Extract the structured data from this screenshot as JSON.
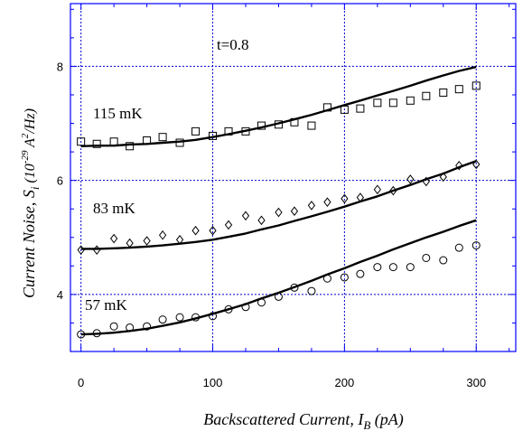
{
  "chart_data": {
    "type": "scatter",
    "title": "",
    "xlabel": "Backscattered Current, I_B (pA)",
    "ylabel": "Current Noise, S_i (10^-29 A^2/Hz)",
    "xlim": [
      -8,
      330
    ],
    "ylim": [
      3.0,
      9.1
    ],
    "x_ticks": [
      0,
      100,
      200,
      300
    ],
    "y_ticks": [
      4,
      6,
      8
    ],
    "grid": true,
    "annotation": "t=0.8",
    "series": [
      {
        "name": "115 mK",
        "marker": "square",
        "x": [
          0,
          12,
          25,
          37,
          50,
          62,
          75,
          87,
          100,
          112,
          125,
          137,
          150,
          162,
          175,
          187,
          200,
          212,
          225,
          237,
          250,
          262,
          275,
          287,
          300
        ],
        "y": [
          6.68,
          6.64,
          6.68,
          6.6,
          6.7,
          6.76,
          6.66,
          6.86,
          6.78,
          6.86,
          6.86,
          6.96,
          6.98,
          7.02,
          6.96,
          7.28,
          7.24,
          7.26,
          7.36,
          7.36,
          7.4,
          7.48,
          7.54,
          7.6,
          7.66
        ],
        "fit_y": [
          6.6,
          6.61,
          6.61,
          6.63,
          6.64,
          6.66,
          6.68,
          6.71,
          6.76,
          6.81,
          6.87,
          6.93,
          7.0,
          7.07,
          7.15,
          7.23,
          7.32,
          7.4,
          7.49,
          7.57,
          7.66,
          7.75,
          7.84,
          7.92,
          7.99
        ]
      },
      {
        "name": "83 mK",
        "marker": "diamond",
        "x": [
          0,
          12,
          25,
          37,
          50,
          62,
          75,
          87,
          100,
          112,
          125,
          137,
          150,
          162,
          175,
          187,
          200,
          212,
          225,
          237,
          250,
          262,
          275,
          287,
          300
        ],
        "y": [
          4.78,
          4.78,
          4.98,
          4.9,
          4.94,
          5.04,
          4.96,
          5.12,
          5.12,
          5.22,
          5.38,
          5.3,
          5.44,
          5.46,
          5.56,
          5.62,
          5.68,
          5.7,
          5.84,
          5.82,
          6.02,
          5.98,
          6.06,
          6.26,
          6.28
        ],
        "fit_y": [
          4.8,
          4.8,
          4.81,
          4.82,
          4.84,
          4.86,
          4.89,
          4.92,
          4.96,
          5.01,
          5.07,
          5.14,
          5.21,
          5.29,
          5.37,
          5.45,
          5.54,
          5.63,
          5.72,
          5.82,
          5.92,
          6.02,
          6.12,
          6.23,
          6.34
        ]
      },
      {
        "name": "57 mK",
        "marker": "circle",
        "x": [
          0,
          12,
          25,
          37,
          50,
          62,
          75,
          87,
          100,
          112,
          125,
          137,
          150,
          162,
          175,
          187,
          200,
          212,
          225,
          237,
          250,
          262,
          275,
          287,
          300
        ],
        "y": [
          3.3,
          3.32,
          3.44,
          3.42,
          3.44,
          3.56,
          3.6,
          3.6,
          3.62,
          3.74,
          3.78,
          3.86,
          3.96,
          4.12,
          4.06,
          4.28,
          4.3,
          4.36,
          4.48,
          4.48,
          4.48,
          4.64,
          4.6,
          4.82,
          4.86
        ],
        "fit_y": [
          3.3,
          3.31,
          3.33,
          3.36,
          3.4,
          3.45,
          3.51,
          3.58,
          3.66,
          3.74,
          3.83,
          3.93,
          4.03,
          4.13,
          4.24,
          4.35,
          4.46,
          4.57,
          4.68,
          4.79,
          4.9,
          5.0,
          5.1,
          5.2,
          5.3
        ]
      }
    ]
  }
}
